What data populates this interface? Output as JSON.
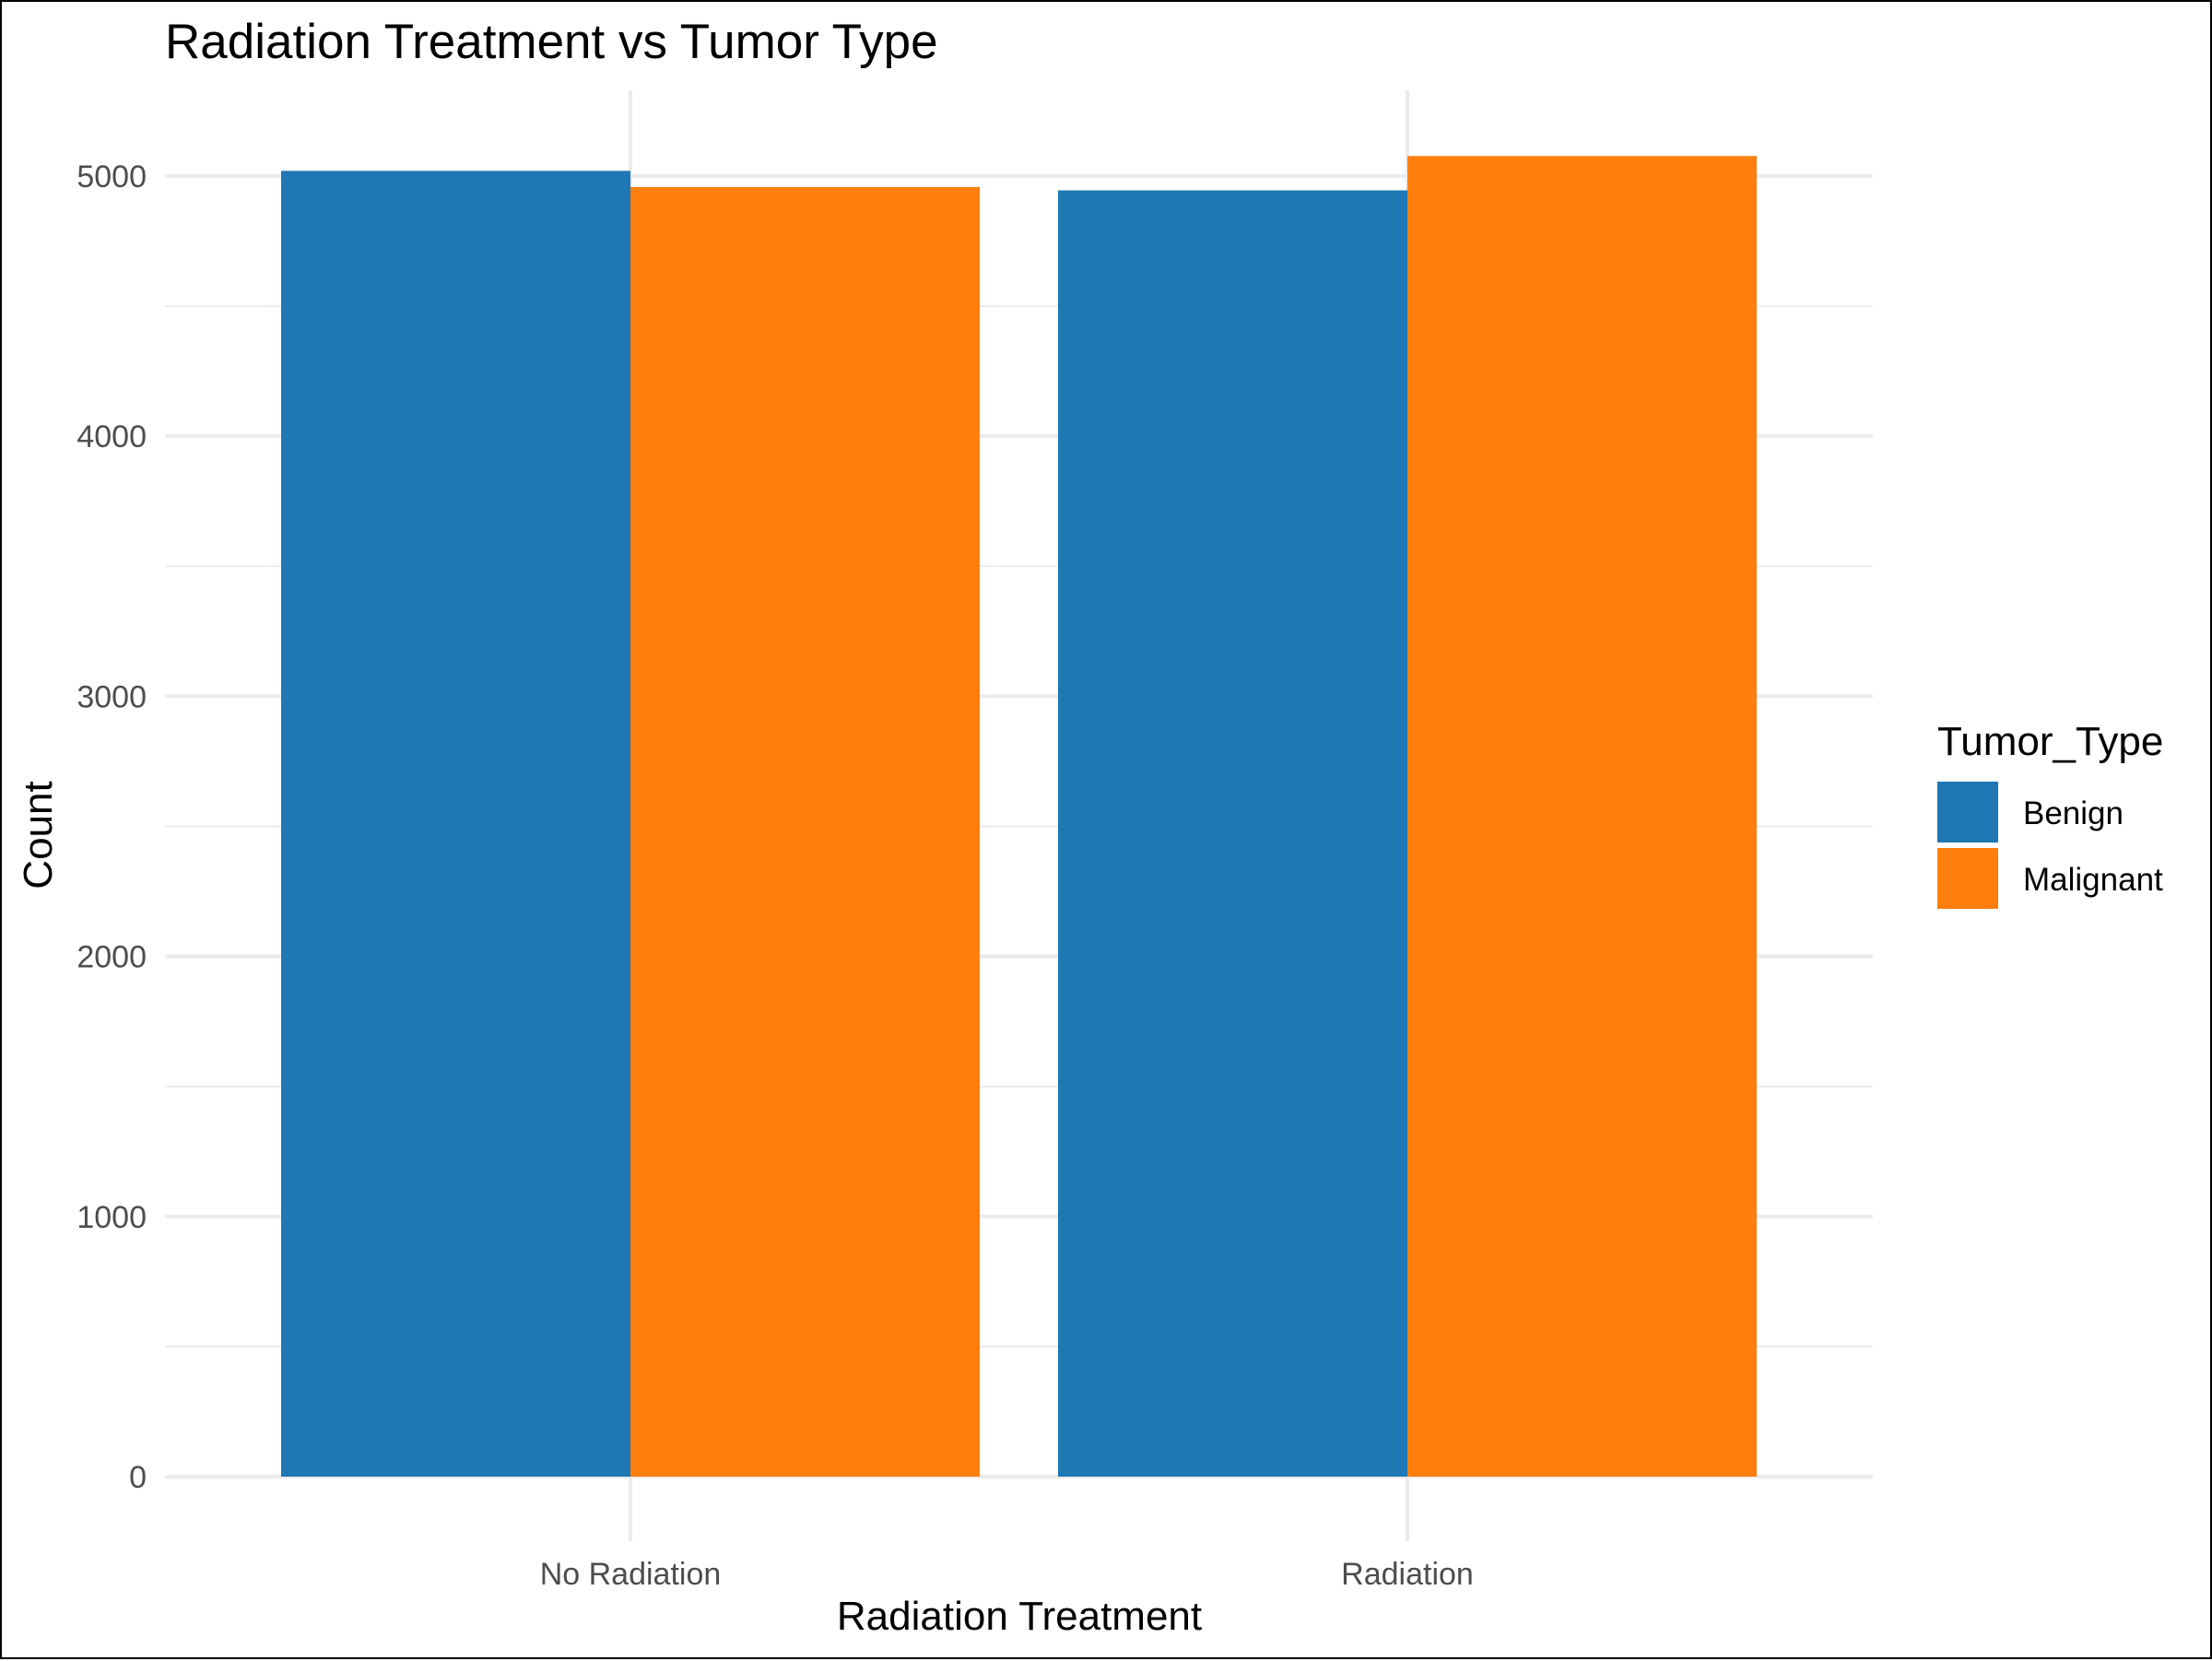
{
  "chart_data": {
    "type": "bar",
    "title": "Radiation Treatment vs Tumor Type",
    "xlabel": "Radiation Treatment",
    "ylabel": "Count",
    "categories": [
      "No Radiation",
      "Radiation"
    ],
    "series": [
      {
        "name": "Benign",
        "values": [
          5020,
          4945
        ],
        "color": "#1f77b4"
      },
      {
        "name": "Malignant",
        "values": [
          4958,
          5077
        ],
        "color": "#ff7f0e"
      }
    ],
    "ylim": [
      0,
      5000
    ],
    "yticks": [
      0,
      1000,
      2000,
      3000,
      4000,
      5000
    ],
    "grid": true,
    "legend": {
      "title": "Tumor_Type",
      "position": "right"
    }
  }
}
